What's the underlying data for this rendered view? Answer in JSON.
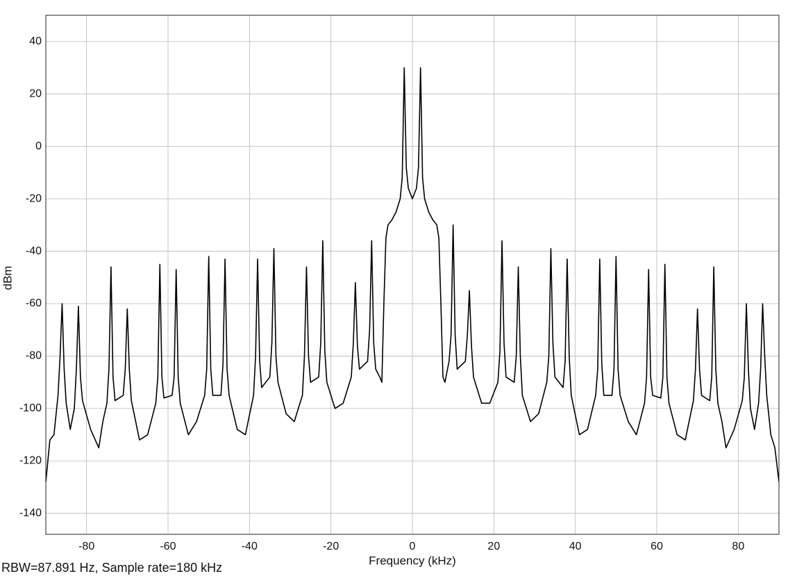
{
  "chart_data": {
    "type": "line",
    "x_label": "Frequency (kHz)",
    "y_label": "dBm",
    "caption": "RBW=87.891 Hz, Sample rate=180 kHz",
    "xlim": [
      -90,
      90
    ],
    "ylim": [
      -148,
      50
    ],
    "xticks": [
      -80,
      -60,
      -40,
      -20,
      0,
      20,
      40,
      60,
      80
    ],
    "yticks": [
      -140,
      -120,
      -100,
      -80,
      -60,
      -40,
      -20,
      0,
      20,
      40
    ],
    "grid": true,
    "x": [
      -90,
      -89,
      -88,
      -87,
      -86.5,
      -86,
      -85.5,
      -85,
      -84,
      -83,
      -82.5,
      -82,
      -81.5,
      -81,
      -79,
      -77,
      -76,
      -75,
      -74.5,
      -74,
      -73.5,
      -73,
      -71,
      -70.5,
      -70,
      -69.5,
      -69,
      -67,
      -65,
      -63,
      -62.5,
      -62,
      -61.5,
      -61,
      -59,
      -58.5,
      -58,
      -57.5,
      -57,
      -55,
      -53,
      -51,
      -50.5,
      -50,
      -49.5,
      -49,
      -47,
      -46.5,
      -46,
      -45.5,
      -45,
      -43,
      -41,
      -39,
      -38.5,
      -38,
      -37.5,
      -37,
      -35,
      -34.5,
      -34,
      -33.5,
      -33,
      -31,
      -29,
      -27,
      -26.5,
      -26,
      -25.5,
      -25,
      -23,
      -22.5,
      -22,
      -21.5,
      -21,
      -19,
      -17,
      -15,
      -14.5,
      -14,
      -13.5,
      -13,
      -11,
      -10.5,
      -10,
      -9.5,
      -9,
      -8,
      -7.5,
      -7,
      -6.5,
      -6,
      -5,
      -4,
      -3,
      -2.5,
      -2,
      -1.5,
      -1,
      0,
      1,
      1.5,
      2,
      2.5,
      3,
      4,
      5,
      6,
      6.5,
      7,
      7.5,
      8,
      9,
      9.5,
      10,
      10.5,
      11,
      13,
      13.5,
      14,
      14.5,
      15,
      17,
      19,
      21,
      21.5,
      22,
      22.5,
      23,
      25,
      25.5,
      26,
      26.5,
      27,
      29,
      31,
      33,
      33.5,
      34,
      34.5,
      35,
      37,
      37.5,
      38,
      38.5,
      39,
      41,
      43,
      45,
      45.5,
      46,
      46.5,
      47,
      49,
      49.5,
      50,
      50.5,
      51,
      53,
      55,
      57,
      57.5,
      58,
      58.5,
      59,
      61,
      61.5,
      62,
      62.5,
      63,
      65,
      67,
      69,
      69.5,
      70,
      70.5,
      71,
      73,
      73.5,
      74,
      74.5,
      75,
      76,
      77,
      79,
      81,
      81.5,
      82,
      82.5,
      83,
      84,
      85,
      85.5,
      86,
      86.5,
      87,
      88,
      89,
      90
    ],
    "series": [
      {
        "color": "#000000",
        "values": [
          -128,
          -112,
          -110,
          -95,
          -80,
          -60,
          -85,
          -98,
          -108,
          -100,
          -85,
          -61,
          -88,
          -97,
          -108,
          -115,
          -105,
          -98,
          -85,
          -46,
          -88,
          -97,
          -95,
          -85,
          -62,
          -85,
          -97,
          -112,
          -110,
          -98,
          -88,
          -45,
          -88,
          -96,
          -95,
          -88,
          -47,
          -88,
          -98,
          -110,
          -105,
          -95,
          -85,
          -42,
          -85,
          -95,
          -95,
          -83,
          -43,
          -85,
          -95,
          -108,
          -110,
          -95,
          -80,
          -43,
          -82,
          -92,
          -88,
          -75,
          -39,
          -80,
          -90,
          -102,
          -105,
          -95,
          -80,
          -46,
          -80,
          -90,
          -88,
          -75,
          -36,
          -78,
          -90,
          -100,
          -98,
          -88,
          -75,
          -52,
          -76,
          -85,
          -82,
          -70,
          -36,
          -75,
          -85,
          -88,
          -90,
          -60,
          -35,
          -30,
          -28,
          -25,
          -20,
          -12,
          30,
          -8,
          -16,
          -20,
          -16,
          -8,
          30,
          -12,
          -20,
          -25,
          -28,
          -30,
          -35,
          -60,
          -88,
          -90,
          -82,
          -72,
          -30,
          -72,
          -85,
          -82,
          -72,
          -55,
          -76,
          -88,
          -98,
          -98,
          -90,
          -78,
          -36,
          -75,
          -88,
          -90,
          -80,
          -46,
          -80,
          -95,
          -105,
          -102,
          -90,
          -80,
          -39,
          -75,
          -88,
          -92,
          -82,
          -43,
          -80,
          -95,
          -110,
          -108,
          -95,
          -85,
          -43,
          -83,
          -95,
          -95,
          -85,
          -42,
          -85,
          -95,
          -105,
          -110,
          -98,
          -88,
          -47,
          -88,
          -95,
          -96,
          -88,
          -45,
          -88,
          -98,
          -110,
          -112,
          -97,
          -85,
          -62,
          -85,
          -95,
          -97,
          -88,
          -46,
          -85,
          -98,
          -105,
          -115,
          -108,
          -97,
          -88,
          -60,
          -85,
          -100,
          -108,
          -98,
          -85,
          -60,
          -80,
          -95,
          -110,
          -115,
          -128
        ]
      }
    ]
  }
}
